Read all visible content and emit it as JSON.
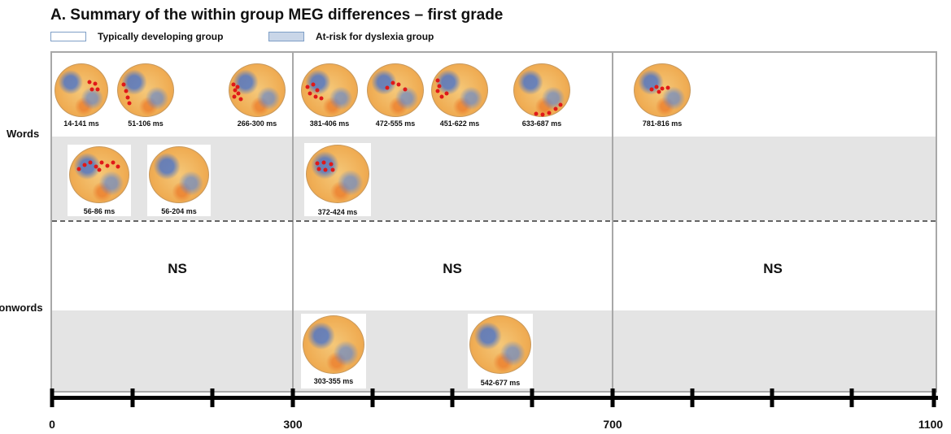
{
  "title": "A. Summary of the within group MEG differences – first grade",
  "legend": {
    "typical": "Typically developing group",
    "at_risk": "At-risk for dyslexia group"
  },
  "rows": {
    "words": "Words",
    "nonwords": "Nonwords"
  },
  "ns_label": "NS",
  "axis": {
    "ticks": [
      "0",
      "300",
      "700",
      "1100"
    ]
  },
  "maps": {
    "words_typical": [
      "14-141 ms",
      "51-106 ms",
      "266-300 ms",
      "381-406 ms",
      "472-555 ms",
      "451-622 ms",
      "633-687 ms",
      "781-816 ms"
    ],
    "words_at_risk": [
      "56-86 ms",
      "56-204 ms",
      "372-424 ms"
    ],
    "nonwords_at_risk": [
      "303-355 ms",
      "542-677 ms"
    ]
  },
  "colors": {
    "band": "#e4e4e4",
    "frame": "#a8a8a8",
    "marker": "#e01818"
  }
}
